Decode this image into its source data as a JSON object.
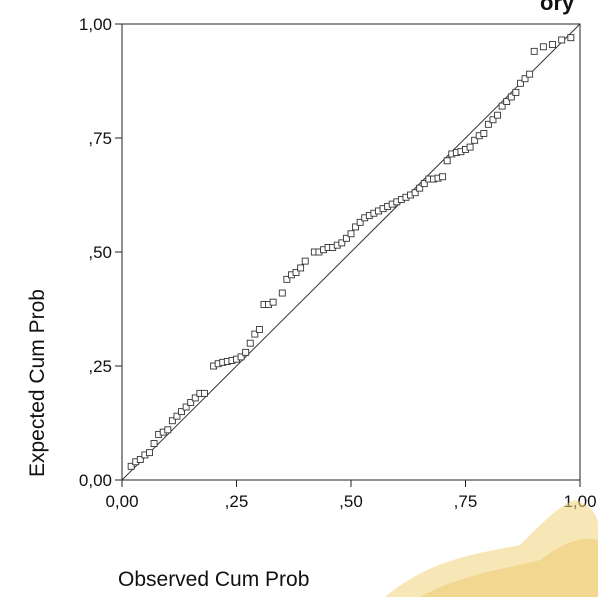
{
  "corner_text": "ory",
  "chart_data": {
    "type": "scatter",
    "title": "",
    "xlabel": "Observed Cum Prob",
    "ylabel": "Expected Cum Prob",
    "xlim": [
      0,
      1
    ],
    "ylim": [
      0,
      1
    ],
    "x_ticks": [
      0,
      0.25,
      0.5,
      0.75,
      1
    ],
    "x_tick_labels": [
      "0,00",
      ",25",
      ",50",
      ",75",
      "1,00"
    ],
    "y_ticks": [
      0,
      0.25,
      0.5,
      0.75,
      1
    ],
    "y_tick_labels": [
      "0,00",
      ",25",
      ",50",
      ",75",
      "1,00"
    ],
    "reference_line": {
      "from": [
        0,
        0
      ],
      "to": [
        1,
        1
      ]
    },
    "grid": false,
    "marker": "open-square",
    "points": [
      [
        0.02,
        0.03
      ],
      [
        0.03,
        0.04
      ],
      [
        0.04,
        0.045
      ],
      [
        0.05,
        0.055
      ],
      [
        0.06,
        0.06
      ],
      [
        0.07,
        0.08
      ],
      [
        0.08,
        0.1
      ],
      [
        0.09,
        0.105
      ],
      [
        0.1,
        0.11
      ],
      [
        0.11,
        0.13
      ],
      [
        0.12,
        0.14
      ],
      [
        0.13,
        0.15
      ],
      [
        0.14,
        0.16
      ],
      [
        0.15,
        0.17
      ],
      [
        0.16,
        0.18
      ],
      [
        0.17,
        0.19
      ],
      [
        0.18,
        0.19
      ],
      [
        0.2,
        0.25
      ],
      [
        0.21,
        0.255
      ],
      [
        0.22,
        0.258
      ],
      [
        0.23,
        0.26
      ],
      [
        0.24,
        0.262
      ],
      [
        0.25,
        0.265
      ],
      [
        0.26,
        0.27
      ],
      [
        0.27,
        0.28
      ],
      [
        0.28,
        0.3
      ],
      [
        0.29,
        0.32
      ],
      [
        0.3,
        0.33
      ],
      [
        0.31,
        0.385
      ],
      [
        0.32,
        0.385
      ],
      [
        0.33,
        0.39
      ],
      [
        0.35,
        0.41
      ],
      [
        0.36,
        0.44
      ],
      [
        0.37,
        0.45
      ],
      [
        0.38,
        0.455
      ],
      [
        0.39,
        0.465
      ],
      [
        0.4,
        0.48
      ],
      [
        0.42,
        0.5
      ],
      [
        0.43,
        0.5
      ],
      [
        0.44,
        0.505
      ],
      [
        0.45,
        0.51
      ],
      [
        0.46,
        0.51
      ],
      [
        0.47,
        0.515
      ],
      [
        0.48,
        0.52
      ],
      [
        0.49,
        0.53
      ],
      [
        0.5,
        0.54
      ],
      [
        0.51,
        0.555
      ],
      [
        0.52,
        0.565
      ],
      [
        0.53,
        0.575
      ],
      [
        0.54,
        0.58
      ],
      [
        0.55,
        0.585
      ],
      [
        0.56,
        0.59
      ],
      [
        0.57,
        0.595
      ],
      [
        0.58,
        0.6
      ],
      [
        0.59,
        0.605
      ],
      [
        0.6,
        0.61
      ],
      [
        0.61,
        0.615
      ],
      [
        0.62,
        0.62
      ],
      [
        0.63,
        0.625
      ],
      [
        0.64,
        0.63
      ],
      [
        0.65,
        0.64
      ],
      [
        0.66,
        0.65
      ],
      [
        0.67,
        0.66
      ],
      [
        0.68,
        0.66
      ],
      [
        0.69,
        0.662
      ],
      [
        0.7,
        0.665
      ],
      [
        0.71,
        0.7
      ],
      [
        0.72,
        0.715
      ],
      [
        0.73,
        0.718
      ],
      [
        0.74,
        0.72
      ],
      [
        0.75,
        0.725
      ],
      [
        0.76,
        0.73
      ],
      [
        0.77,
        0.745
      ],
      [
        0.78,
        0.755
      ],
      [
        0.79,
        0.76
      ],
      [
        0.8,
        0.78
      ],
      [
        0.81,
        0.79
      ],
      [
        0.82,
        0.8
      ],
      [
        0.83,
        0.82
      ],
      [
        0.84,
        0.83
      ],
      [
        0.85,
        0.84
      ],
      [
        0.86,
        0.85
      ],
      [
        0.87,
        0.87
      ],
      [
        0.88,
        0.88
      ],
      [
        0.89,
        0.89
      ],
      [
        0.9,
        0.94
      ],
      [
        0.92,
        0.95
      ],
      [
        0.94,
        0.955
      ],
      [
        0.96,
        0.965
      ],
      [
        0.98,
        0.97
      ]
    ]
  }
}
